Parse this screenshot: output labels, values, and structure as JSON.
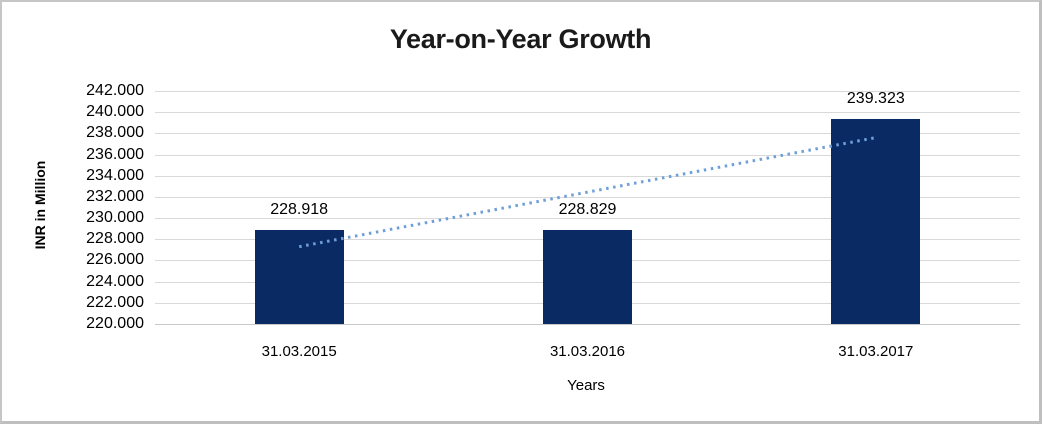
{
  "frame": {
    "background": "#ffffff",
    "border_color": "#c6c6c6"
  },
  "chart_data": {
    "type": "bar",
    "title": "Year-on-Year Growth",
    "xlabel": "Years",
    "ylabel": "INR in Million",
    "categories": [
      "31.03.2015",
      "31.03.2016",
      "31.03.2017"
    ],
    "series": [
      {
        "name": "INR in Million",
        "values": [
          228.918,
          228.829,
          239.323
        ]
      }
    ],
    "data_labels": [
      "228.918",
      "228.829",
      "239.323"
    ],
    "y_ticks": [
      "242.000",
      "240.000",
      "238.000",
      "236.000",
      "234.000",
      "232.000",
      "230.000",
      "228.000",
      "226.000",
      "224.000",
      "222.000",
      "220.000"
    ],
    "ylim": [
      220,
      242
    ],
    "y_tick_step": 2,
    "grid": true,
    "legend": "none",
    "bar_color": "#0a2a63",
    "gridline_color": "#d9d9d9",
    "axis_line_color": "#c9c9c9",
    "trendline": {
      "type": "linear",
      "style": "dotted",
      "color": "#6f9fd8",
      "start": {
        "category_index": 0,
        "value": 227.3
      },
      "end": {
        "category_index": 2,
        "value": 237.6
      }
    }
  }
}
